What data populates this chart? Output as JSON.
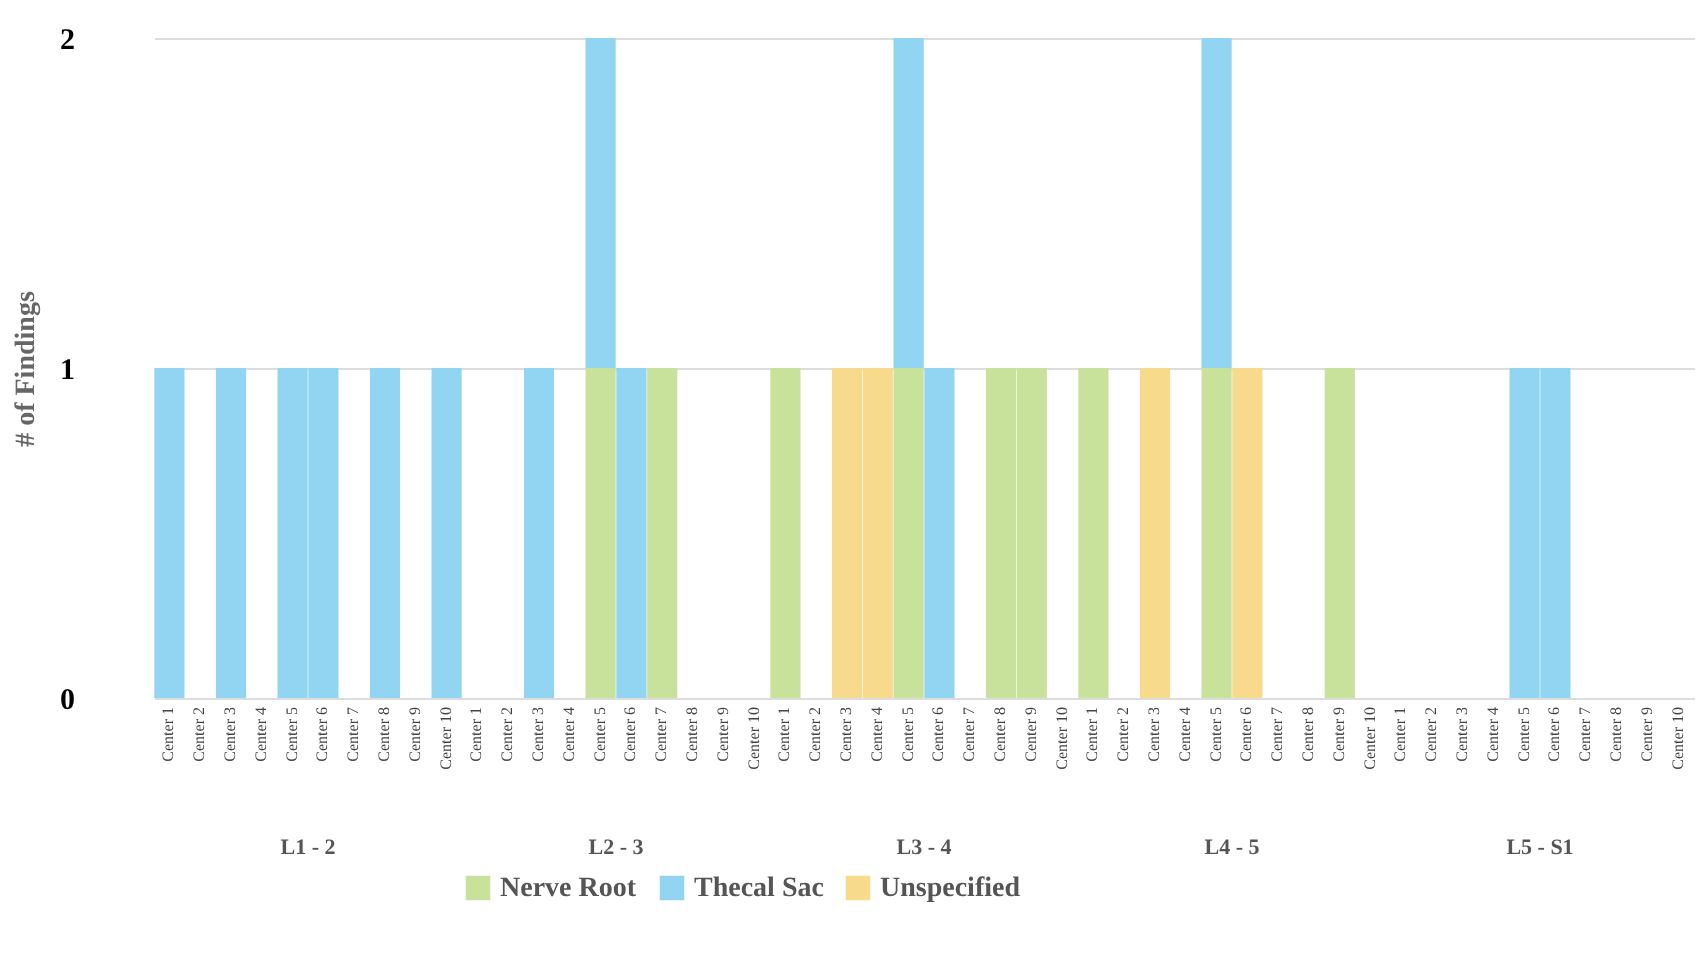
{
  "chart_data": {
    "type": "bar",
    "stacked": true,
    "ylabel": "# of Findings",
    "categories": [
      "Center 1",
      "Center 2",
      "Center 3",
      "Center 4",
      "Center 5",
      "Center 6",
      "Center 7",
      "Center 8",
      "Center 9",
      "Center 10",
      "Center 1",
      "Center 2",
      "Center 3",
      "Center 4",
      "Center 5",
      "Center 6",
      "Center 7",
      "Center 8",
      "Center 9",
      "Center 10",
      "Center 1",
      "Center 2",
      "Center 3",
      "Center 4",
      "Center 5",
      "Center 6",
      "Center 7",
      "Center 8",
      "Center 9",
      "Center 10",
      "Center 1",
      "Center 2",
      "Center 3",
      "Center 4",
      "Center 5",
      "Center 6",
      "Center 7",
      "Center 8",
      "Center 9",
      "Center 10",
      "Center 1",
      "Center 2",
      "Center 3",
      "Center 4",
      "Center 5",
      "Center 6",
      "Center 7",
      "Center 8",
      "Center 9",
      "Center 10"
    ],
    "series": [
      {
        "name": "Nerve Root",
        "color": "#c8e29c",
        "values": [
          0,
          0,
          0,
          0,
          0,
          0,
          0,
          0,
          0,
          0,
          0,
          0,
          0,
          0,
          1,
          0,
          1,
          0,
          0,
          0,
          1,
          0,
          0,
          0,
          1,
          0,
          0,
          1,
          1,
          0,
          1,
          0,
          0,
          0,
          1,
          0,
          0,
          0,
          1,
          0,
          0,
          0,
          0,
          0,
          0,
          0,
          0,
          0,
          0,
          0
        ]
      },
      {
        "name": "Thecal Sac",
        "color": "#92d5f2",
        "values": [
          1,
          0,
          1,
          0,
          1,
          1,
          0,
          1,
          0,
          1,
          0,
          0,
          1,
          0,
          1,
          1,
          0,
          0,
          0,
          0,
          0,
          0,
          0,
          0,
          1,
          1,
          0,
          0,
          0,
          0,
          0,
          0,
          0,
          0,
          1,
          0,
          0,
          0,
          0,
          0,
          0,
          0,
          0,
          0,
          1,
          1,
          0,
          0,
          0,
          0
        ]
      },
      {
        "name": "Unspecified",
        "color": "#f8da8c",
        "values": [
          0,
          0,
          0,
          0,
          0,
          0,
          0,
          0,
          0,
          0,
          0,
          0,
          0,
          0,
          0,
          0,
          0,
          0,
          0,
          0,
          0,
          0,
          1,
          1,
          0,
          0,
          0,
          0,
          0,
          0,
          0,
          0,
          1,
          0,
          0,
          1,
          0,
          0,
          0,
          0,
          0,
          0,
          0,
          0,
          0,
          0,
          0,
          0,
          0,
          0
        ]
      }
    ],
    "annotations": [
      "L1 - 2",
      "L2 - 3",
      "L3 - 4",
      "L4 - 5",
      "L5 - S1"
    ],
    "ylim": [
      0,
      2
    ],
    "yticks": [
      0,
      1,
      2
    ],
    "grid": "y",
    "legend": "bottom"
  }
}
